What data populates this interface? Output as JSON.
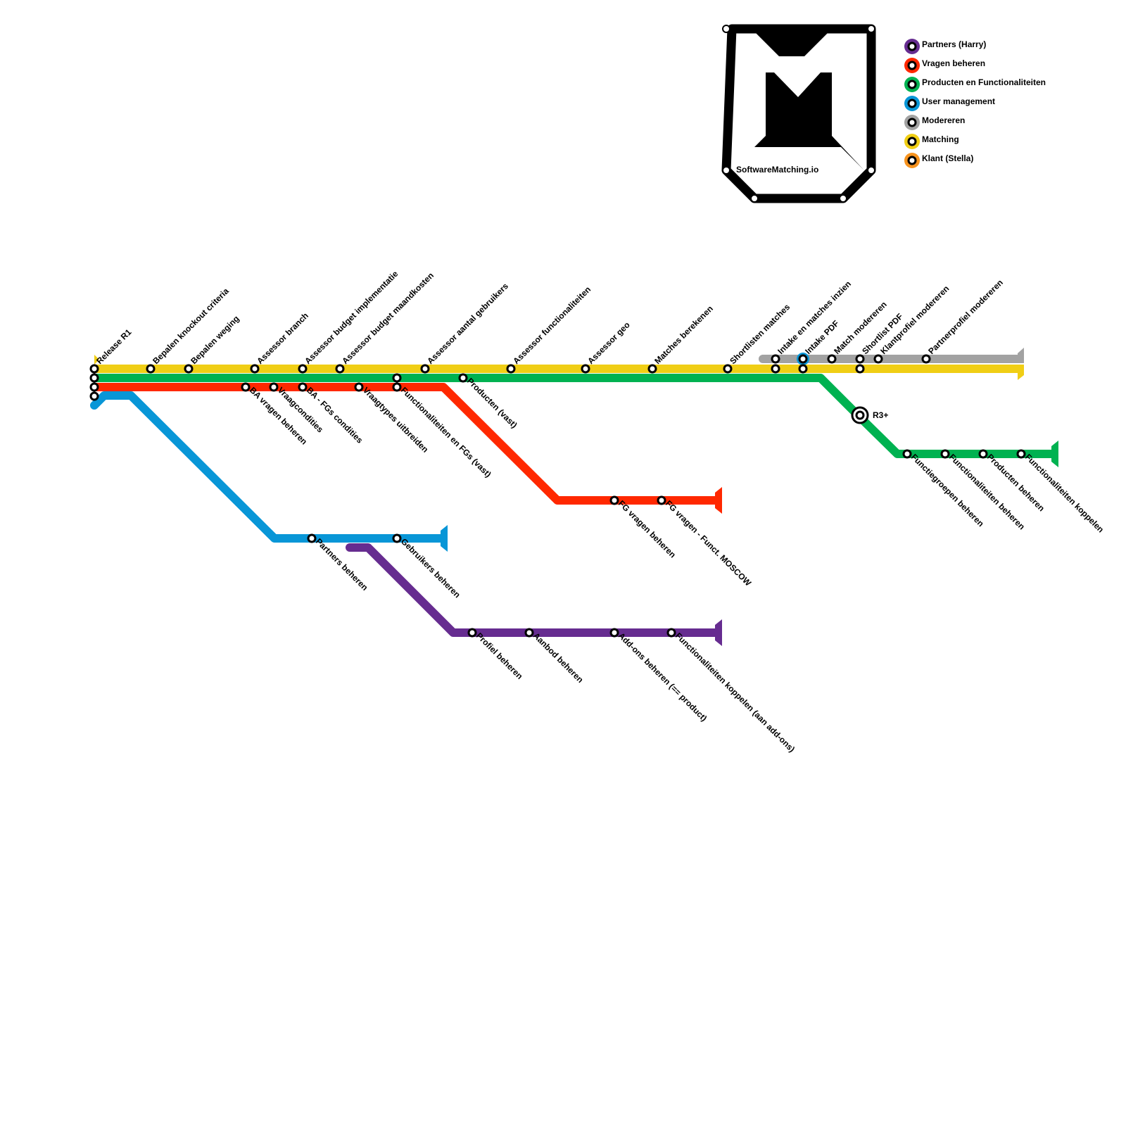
{
  "legend": [
    {
      "key": "partners",
      "label": "Partners (Harry)",
      "color": "#662c90"
    },
    {
      "key": "vragen",
      "label": "Vragen beheren",
      "color": "#ff2800"
    },
    {
      "key": "producten",
      "label": "Producten en Functionaliteiten",
      "color": "#00b251"
    },
    {
      "key": "users",
      "label": "User management",
      "color": "#0896d7"
    },
    {
      "key": "modereren",
      "label": "Modereren",
      "color": "#a2a2a2"
    },
    {
      "key": "matching",
      "label": "Matching",
      "color": "#f0ce15"
    },
    {
      "key": "klant",
      "label": "Klant (Stella)",
      "color": "#f7931e"
    }
  ],
  "logo": {
    "text": "SoftwareMatching.io"
  },
  "stations": {
    "release_r1": "Release R1",
    "bepalen_knockout": "Bepalen knockout criteria",
    "bepalen_weging": "Bepalen weging",
    "assessor_branch": "Assessor branch",
    "assessor_budget_impl": "Assessor budget implementatie",
    "assessor_budget_maand": "Assessor budget maandkosten",
    "assessor_aantal": "Assessor aantal gebruikers",
    "assessor_functionaliteiten": "Assessor functionaliteiten",
    "assessor_geo": "Assessor geo",
    "matches_berekenen": "Matches berekenen",
    "shortlisten_matches": "Shortlisten matches",
    "intake_matches_inzien": "Intake en matches inzien",
    "intake_pdf": "Intake PDF",
    "match_modereren": "Match modereren",
    "shortlist_pdf": "Shortlist PDF",
    "klantprofiel_modereren": "Klantprofiel modereren",
    "partnerprofiel_modereren": "Partnerprofiel modereren",
    "ba_vragen_beheren": "BA vragen beheren",
    "vraagcondities": "Vraagcondities",
    "ba_fgs_condities": "BA - FGs condities",
    "vraagtypes_uitbreiden": "Vraagtypes uitbreiden",
    "functionaliteiten_fgs_vast": "Functionaliteiten en FGs (vast)",
    "producten_vast": "Producten (vast)",
    "fg_vragen_beheren": "FG vragen beheren",
    "fg_vragen_moscow": "FG vragen - Funct. MOSCOW",
    "r3": "R3+",
    "functiegroepen_beheren": "Functiegroepen beheren",
    "functionaliteiten_beheren": "Functionaliteiten beheren",
    "producten_beheren": "Producten beheren",
    "functionaliteiten_koppelen": "Functionaliteiten koppelen",
    "partners_beheren": "Partners beheren",
    "gebruikers_beheren": "Gebruikers beheren",
    "profiel_beheren": "Profiel beheren",
    "aanbod_beheren": "Aanbod beheren",
    "addons_beheren": "Add-ons beheren (== product)",
    "functionaliteiten_koppelen_addons": "Functionaliteiten koppelen (aan add-ons)"
  }
}
